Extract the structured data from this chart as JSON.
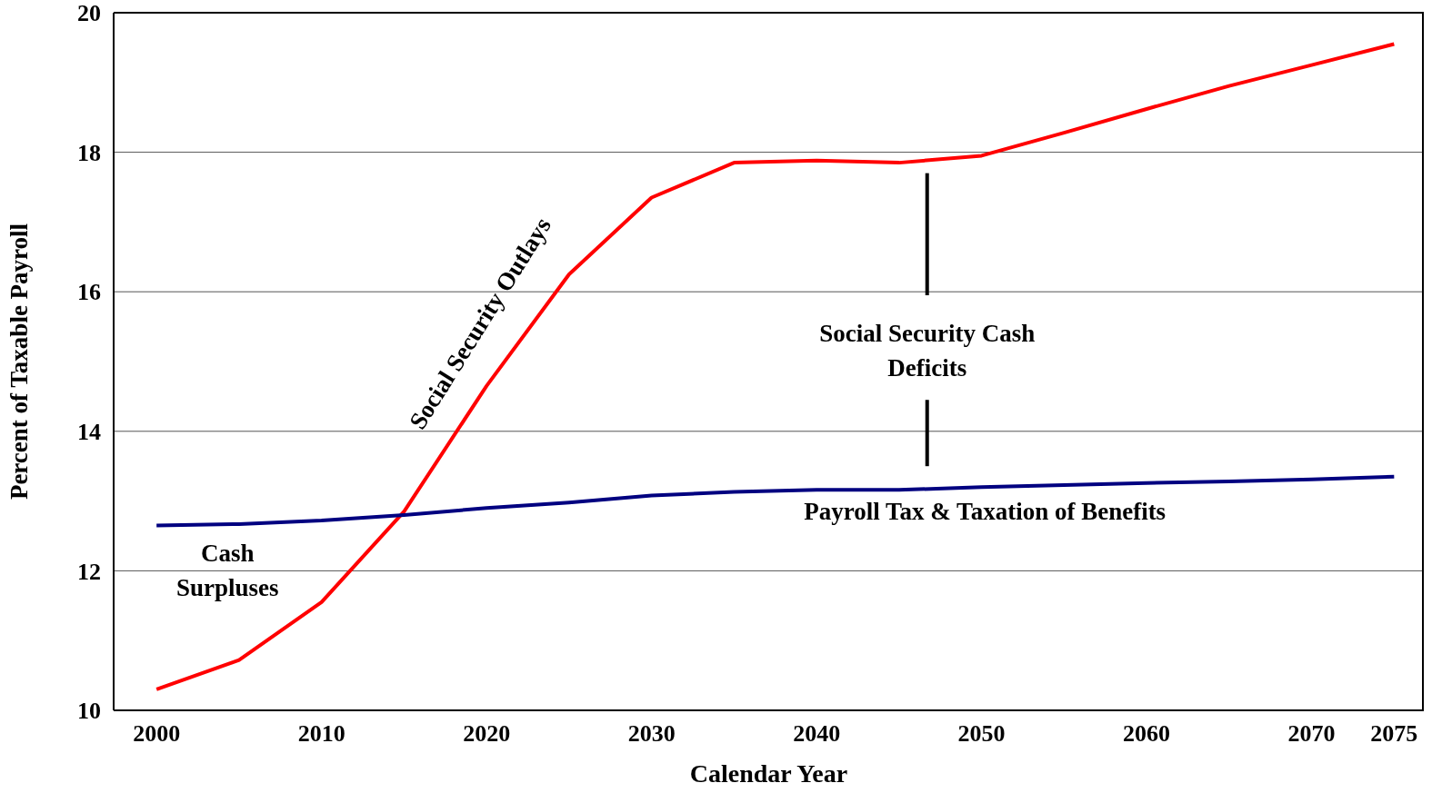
{
  "chart_data": {
    "type": "line",
    "xlabel": "Calendar Year",
    "ylabel": "Percent of Taxable Payroll",
    "x": [
      2000,
      2005,
      2010,
      2015,
      2020,
      2025,
      2030,
      2035,
      2040,
      2045,
      2050,
      2055,
      2060,
      2065,
      2070,
      2075
    ],
    "series": [
      {
        "name": "Social Security Outlays",
        "color": "#ff0000",
        "values": [
          10.3,
          10.72,
          11.55,
          12.85,
          14.65,
          16.25,
          17.35,
          17.85,
          17.88,
          17.85,
          17.95,
          18.28,
          18.62,
          18.95,
          19.25,
          19.55
        ]
      },
      {
        "name": "Payroll Tax & Taxation of Benefits",
        "color": "#000080",
        "values": [
          12.65,
          12.67,
          12.72,
          12.8,
          12.9,
          12.98,
          13.08,
          13.13,
          13.16,
          13.16,
          13.2,
          13.23,
          13.26,
          13.28,
          13.31,
          13.35
        ]
      }
    ],
    "xlim": [
      1997.4,
      2076.8
    ],
    "xticks": [
      2000,
      2010,
      2020,
      2030,
      2040,
      2050,
      2060,
      2070,
      2075
    ],
    "ylim": [
      10,
      20
    ],
    "yticks": [
      10,
      12,
      14,
      16,
      18,
      20
    ],
    "grid": "y",
    "legend": false,
    "marker": "none",
    "line_style": "solid",
    "annotations": [
      "Cash Surpluses",
      "Social Security Cash Deficits"
    ]
  }
}
